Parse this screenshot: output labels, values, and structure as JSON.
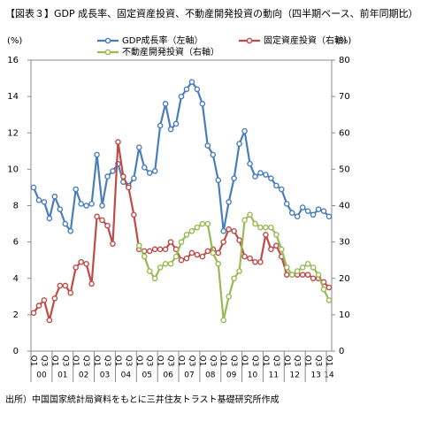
{
  "chart_data": {
    "type": "line",
    "title": "【図表３】GDP 成長率、固定資産投資、不動産開発投資の動向（四半期ベース、前年同期比）",
    "y_unit": "(%)",
    "y2_unit": "(%)",
    "source": "出所）中国国家統計局資料をもとに三井住友トラスト基礎研究所作成",
    "categories": [
      "Q1",
      null,
      "Q3",
      null,
      "Q1",
      null,
      "Q3",
      null,
      "Q1",
      null,
      "Q3",
      null,
      "Q1",
      null,
      "Q3",
      null,
      "Q1",
      null,
      "Q3",
      null,
      "Q1",
      null,
      "Q3",
      null,
      "Q1",
      null,
      "Q3",
      null,
      "Q1",
      null,
      "Q3",
      null,
      "Q1",
      null,
      "Q3",
      null,
      "Q1",
      null,
      "Q3",
      null,
      "Q1",
      null,
      "Q3",
      null,
      "Q1",
      null,
      "Q3",
      null,
      "Q1",
      null,
      "Q3",
      null,
      "Q1",
      null,
      "Q3",
      null,
      "Q1"
    ],
    "year_labels": [
      "00",
      "01",
      "02",
      "03",
      "04",
      "05",
      "06",
      "07",
      "08",
      "09",
      "10",
      "11",
      "12",
      "13",
      "14"
    ],
    "series": [
      {
        "name": "GDP成長率（左軸）",
        "color": "#4a7ebb",
        "values": [
          9.0,
          8.3,
          8.2,
          7.3,
          8.5,
          7.8,
          7.0,
          6.6,
          8.9,
          8.1,
          8.0,
          8.1,
          10.8,
          8.0,
          9.6,
          9.9,
          10.3,
          9.3,
          9.1,
          9.5,
          11.2,
          10.1,
          9.8,
          9.9,
          12.4,
          13.6,
          12.2,
          12.5,
          14.0,
          14.4,
          14.8,
          14.4,
          13.6,
          11.3,
          10.8,
          9.4,
          6.6,
          8.2,
          9.5,
          11.4,
          12.1,
          10.3,
          9.6,
          9.8,
          9.7,
          9.5,
          9.1,
          8.9,
          8.1,
          7.6,
          7.4,
          7.9,
          7.7,
          7.5,
          7.8,
          7.7,
          7.4
        ]
      },
      {
        "name": "固定資産投資（右軸）",
        "color": "#be4b48",
        "axis": "y2",
        "values": [
          10.5,
          12.5,
          14,
          8.5,
          14.5,
          18,
          18,
          16,
          23,
          24.5,
          24,
          18.5,
          37,
          36,
          34.5,
          29.5,
          57.5,
          48,
          45,
          37.5,
          28,
          27.5,
          27.5,
          28,
          28,
          28,
          30,
          28,
          25,
          25.5,
          27,
          26.5,
          26,
          27.5,
          28,
          27,
          30,
          33.5,
          33,
          30.5,
          26,
          25.5,
          24.5,
          24.5,
          32,
          28,
          29,
          26,
          21,
          21,
          21,
          21,
          21,
          20,
          20,
          19,
          17.5
        ]
      },
      {
        "name": "不動産開発投資（右軸）",
        "color": "#98b954",
        "axis": "y2",
        "values": [
          null,
          null,
          null,
          null,
          null,
          null,
          null,
          null,
          null,
          null,
          null,
          null,
          null,
          null,
          null,
          null,
          null,
          null,
          null,
          null,
          29,
          26,
          22,
          20,
          23,
          24,
          24,
          26,
          30,
          32,
          33,
          34,
          35,
          35,
          27,
          24,
          8.5,
          15,
          20,
          22,
          36,
          37.5,
          35,
          34,
          34,
          34,
          32,
          28,
          23,
          21,
          22,
          23,
          24,
          23,
          21,
          17,
          14
        ]
      }
    ],
    "ylim": [
      0,
      16
    ],
    "yticks": [
      0,
      2,
      4,
      6,
      8,
      10,
      12,
      14,
      16
    ],
    "y2lim": [
      0,
      80
    ],
    "y2ticks": [
      0,
      10,
      20,
      30,
      40,
      50,
      60,
      70,
      80
    ]
  }
}
